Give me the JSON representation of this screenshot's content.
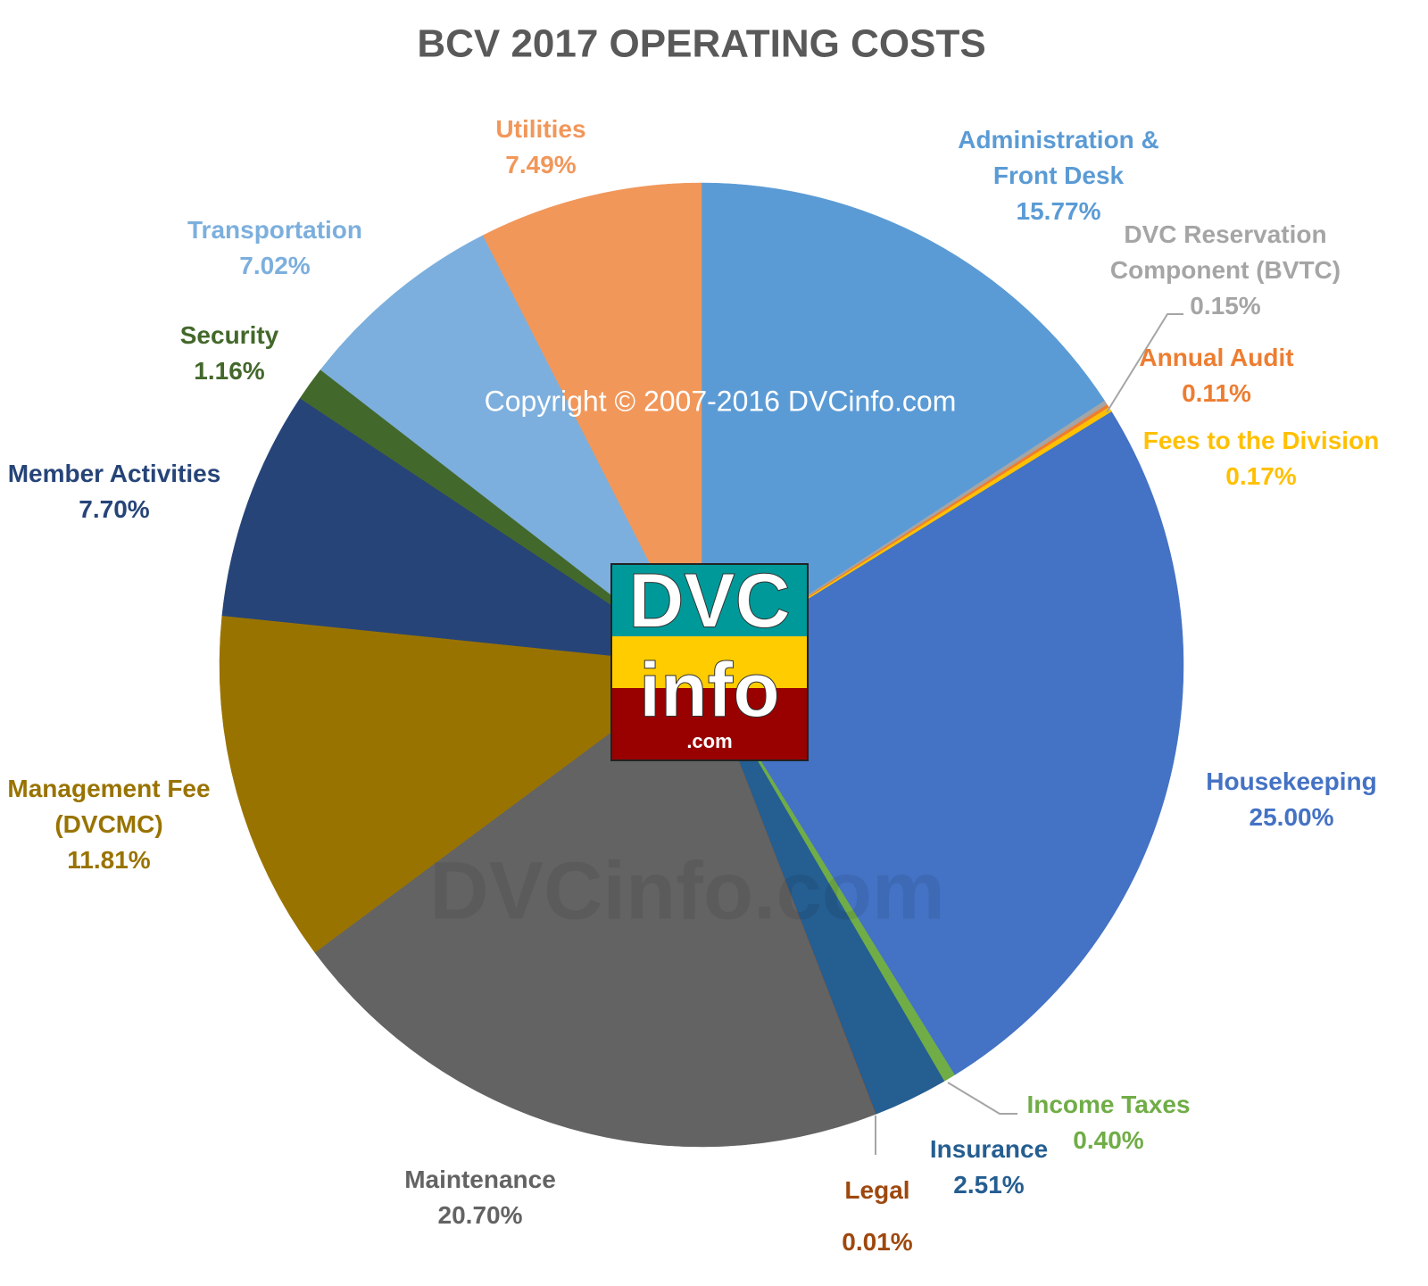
{
  "chart_data": {
    "type": "pie",
    "title": "BCV 2017 OPERATING COSTS",
    "categories": [
      "Administration & Front Desk",
      "DVC Reservation Component (BVTC)",
      "Annual Audit",
      "Fees to the Division",
      "Housekeeping",
      "Income Taxes",
      "Insurance",
      "Legal",
      "Maintenance",
      "Management Fee (DVCMC)",
      "Member Activities",
      "Security",
      "Transportation",
      "Utilities"
    ],
    "values": [
      15.77,
      0.15,
      0.11,
      0.17,
      25.0,
      0.4,
      2.51,
      0.01,
      20.7,
      11.81,
      7.7,
      1.16,
      7.02,
      7.49
    ],
    "value_labels": [
      "15.77%",
      "0.15%",
      "0.11%",
      "0.17%",
      "25.00%",
      "0.40%",
      "2.51%",
      "0.01%",
      "20.70%",
      "11.81%",
      "7.70%",
      "1.16%",
      "7.02%",
      "7.49%"
    ],
    "colors": [
      "#5b9bd5",
      "#a5a5a5",
      "#ed7d31",
      "#ffc000",
      "#4472c4",
      "#70ad47",
      "#255e91",
      "#9e480e",
      "#636363",
      "#997300",
      "#264478",
      "#43682b",
      "#7cafdd",
      "#f1975a"
    ],
    "copyright": "Copyright © 2007-2016 DVCinfo.com",
    "watermark": "DVCinfo.com",
    "logo": {
      "line1": "DVC",
      "line2": "info",
      "line3": ".com"
    }
  }
}
